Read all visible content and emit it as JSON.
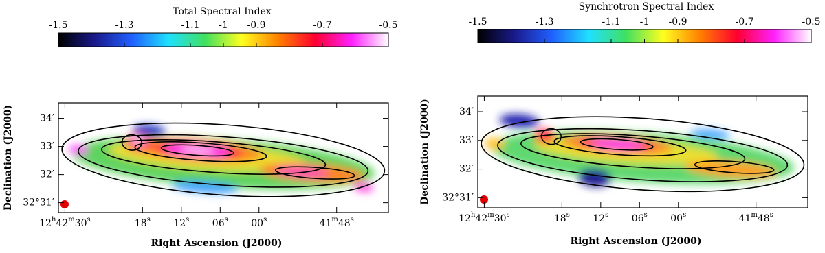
{
  "chart_data": [
    {
      "type": "image",
      "title": "Total Spectral Index",
      "colorbar_lim": [
        -1.5,
        -0.5
      ],
      "colorbar_ticks": [
        -1.5,
        -1.3,
        -1.1,
        -1,
        -0.9,
        -0.7,
        -0.5
      ],
      "colorbar_colors": [
        "#000000",
        "#1a1a8c",
        "#2060ff",
        "#20e0ff",
        "#40e060",
        "#ffff20",
        "#ff8000",
        "#ff0030",
        "#ff20ff",
        "#ffffff"
      ],
      "x_label": "Right Ascension (J2000)",
      "y_label": "Declination (J2000)",
      "xlim": [
        2551,
        2500
      ],
      "xticks": [
        {
          "value": 2550,
          "label": "12h42m30s"
        },
        {
          "value": 2538,
          "label": "18s"
        },
        {
          "value": 2532,
          "label": "12s"
        },
        {
          "value": 2526,
          "label": "06s"
        },
        {
          "value": 2520,
          "label": "00s"
        },
        {
          "value": 2508,
          "label": "41m48s"
        }
      ],
      "ylim": [
        30.65,
        34.55
      ],
      "yticks": [
        {
          "value": 34,
          "label": "34′"
        },
        {
          "value": 33,
          "label": "33′"
        },
        {
          "value": 32,
          "label": "32′"
        },
        {
          "value": 31,
          "label": "32°31′"
        }
      ]
    },
    {
      "type": "image",
      "title": "Synchrotron Spectral Index",
      "colorbar_lim": [
        -1.5,
        -0.5
      ],
      "colorbar_ticks": [
        -1.5,
        -1.3,
        -1.1,
        -1,
        -0.9,
        -0.7,
        -0.5
      ],
      "colorbar_colors": [
        "#000000",
        "#1a1a8c",
        "#2060ff",
        "#20e0ff",
        "#40e060",
        "#ffff20",
        "#ff8000",
        "#ff0030",
        "#ff20ff",
        "#ffffff"
      ],
      "x_label": "Right Ascension (J2000)",
      "y_label": "Declination (J2000)",
      "xlim": [
        2551,
        2500
      ],
      "xticks": [
        {
          "value": 2550,
          "label": "12h42m30s"
        },
        {
          "value": 2538,
          "label": "18s"
        },
        {
          "value": 2532,
          "label": "12s"
        },
        {
          "value": 2526,
          "label": "06s"
        },
        {
          "value": 2520,
          "label": "00s"
        },
        {
          "value": 2508,
          "label": "41m48s"
        }
      ],
      "ylim": [
        30.65,
        34.55
      ],
      "yticks": [
        {
          "value": 34,
          "label": "34′"
        },
        {
          "value": 33,
          "label": "33′"
        },
        {
          "value": 32,
          "label": "32′"
        },
        {
          "value": 31,
          "label": "32°31′"
        }
      ]
    }
  ]
}
